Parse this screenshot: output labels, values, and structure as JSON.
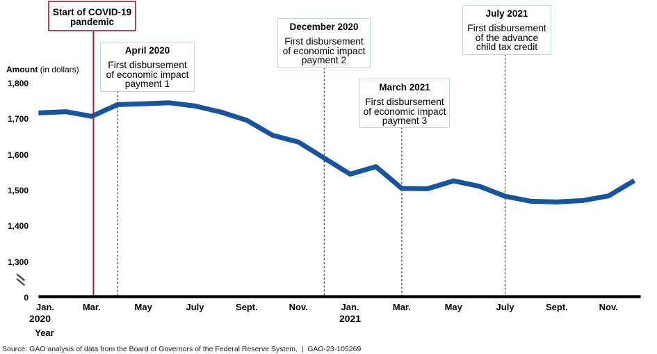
{
  "figure": {
    "y_axis_title_bold": "Amount",
    "y_axis_title_normal": " (in dollars)",
    "x_axis_title": "Year",
    "source_line": "Source: GAO analysis of data from the Board of Governors of the Federal Reserve System.  |  GAO-23-105269"
  },
  "chart_data": {
    "type": "line",
    "title": "",
    "xlabel": "Year",
    "ylabel": "Amount (in dollars)",
    "line_color": "#16549e",
    "x": [
      "Jan. 2020",
      "Feb. 2020",
      "Mar. 2020",
      "Apr. 2020",
      "May 2020",
      "June 2020",
      "July 2020",
      "Aug. 2020",
      "Sept. 2020",
      "Oct. 2020",
      "Nov. 2020",
      "Dec. 2020",
      "Jan. 2021",
      "Feb. 2021",
      "Mar. 2021",
      "Apr. 2021",
      "May 2021",
      "June 2021",
      "July 2021",
      "Aug. 2021",
      "Sept. 2021",
      "Oct. 2021",
      "Nov. 2021",
      "Dec. 2021"
    ],
    "values": [
      1719,
      1722,
      1709,
      1742,
      1744,
      1747,
      1738,
      1721,
      1698,
      1656,
      1637,
      1592,
      1547,
      1568,
      1507,
      1506,
      1528,
      1513,
      1485,
      1471,
      1469,
      1473,
      1486,
      1529
    ],
    "y_ticks": [
      1800,
      1700,
      1600,
      1500,
      1400,
      1300
    ],
    "zero_tick_label": "0",
    "axis_break": true,
    "grid": false,
    "legend": "none",
    "x_tick_labels": [
      {
        "label": "Jan.",
        "month": 0,
        "year_label": "2020"
      },
      {
        "label": "Mar.",
        "month": 2
      },
      {
        "label": "May",
        "month": 4
      },
      {
        "label": "July",
        "month": 6
      },
      {
        "label": "Sept.",
        "month": 8
      },
      {
        "label": "Nov.",
        "month": 10
      },
      {
        "label": "Jan.",
        "month": 12,
        "year_label": "2021"
      },
      {
        "label": "Mar.",
        "month": 14
      },
      {
        "label": "May",
        "month": 16
      },
      {
        "label": "July",
        "month": 18
      },
      {
        "label": "Sept.",
        "month": 20
      },
      {
        "label": "Nov.",
        "month": 22
      }
    ],
    "annotations": [
      {
        "id": "covid",
        "month": 2.07,
        "line_style": "solid",
        "line_color": "#992136",
        "title_lines": [
          "Start of COVID-19",
          "pandemic"
        ],
        "body_lines": []
      },
      {
        "id": "eip1",
        "month": 3,
        "line_style": "dashed",
        "line_color": "#474747",
        "title_lines": [
          "April 2020"
        ],
        "body_lines": [
          "First disbursement",
          "of economic impact",
          "payment 1"
        ]
      },
      {
        "id": "eip2",
        "month": 11,
        "line_style": "dashed",
        "line_color": "#474747",
        "title_lines": [
          "December 2020"
        ],
        "body_lines": [
          "First disbursement",
          "of economic impact",
          "payment 2"
        ]
      },
      {
        "id": "eip3",
        "month": 14,
        "line_style": "dashed",
        "line_color": "#474747",
        "title_lines": [
          "March 2021"
        ],
        "body_lines": [
          "First disbursement",
          "of economic impact",
          "payment 3"
        ]
      },
      {
        "id": "ctc",
        "month": 18,
        "line_style": "dashed",
        "line_color": "#474747",
        "title_lines": [
          "July 2021"
        ],
        "body_lines": [
          "First disbursement",
          "of the advance",
          "child tax credit"
        ]
      }
    ]
  }
}
